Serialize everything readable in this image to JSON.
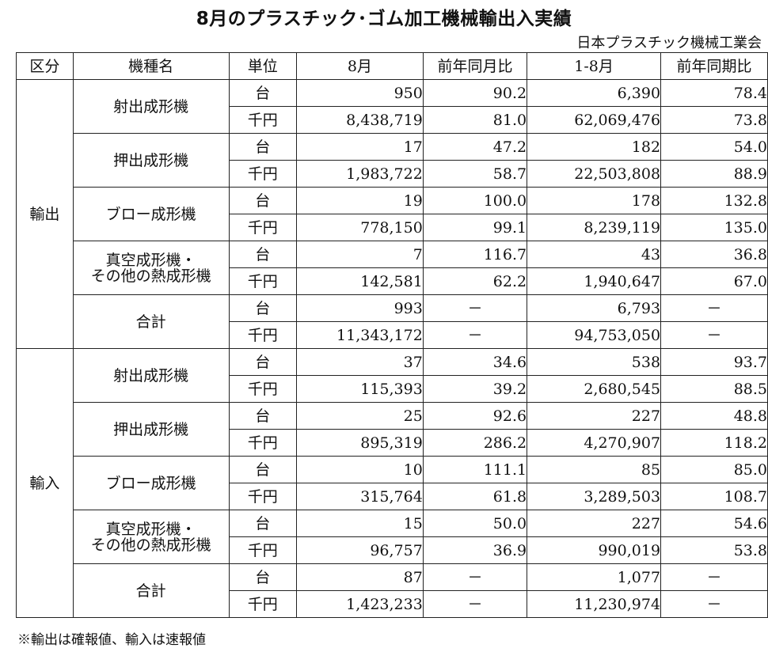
{
  "title": "8月のプラスチック･ゴム加工機械輸出入実績",
  "source": "日本プラスチック機械工業会",
  "headers": [
    "区分",
    "機種名",
    "単位",
    "8月",
    "前年同月比",
    "1-8月",
    "前年同期比"
  ],
  "groups": [
    {
      "name": "輸出",
      "machines": [
        {
          "name": "射出成形機",
          "rows": [
            {
              "unit": "台",
              "month": "950",
              "month_ratio": "90.2",
              "ytd": "6,390",
              "ytd_ratio": "78.4"
            },
            {
              "unit": "千円",
              "month": "8,438,719",
              "month_ratio": "81.0",
              "ytd": "62,069,476",
              "ytd_ratio": "73.8"
            }
          ]
        },
        {
          "name": "押出成形機",
          "rows": [
            {
              "unit": "台",
              "month": "17",
              "month_ratio": "47.2",
              "ytd": "182",
              "ytd_ratio": "54.0"
            },
            {
              "unit": "千円",
              "month": "1,983,722",
              "month_ratio": "58.7",
              "ytd": "22,503,808",
              "ytd_ratio": "88.9"
            }
          ]
        },
        {
          "name": "ブロー成形機",
          "rows": [
            {
              "unit": "台",
              "month": "19",
              "month_ratio": "100.0",
              "ytd": "178",
              "ytd_ratio": "132.8"
            },
            {
              "unit": "千円",
              "month": "778,150",
              "month_ratio": "99.1",
              "ytd": "8,239,119",
              "ytd_ratio": "135.0"
            }
          ]
        },
        {
          "name_line1": "真空成形機・",
          "name_line2": "その他の熱成形機",
          "rows": [
            {
              "unit": "台",
              "month": "7",
              "month_ratio": "116.7",
              "ytd": "43",
              "ytd_ratio": "36.8"
            },
            {
              "unit": "千円",
              "month": "142,581",
              "month_ratio": "62.2",
              "ytd": "1,940,647",
              "ytd_ratio": "67.0"
            }
          ]
        },
        {
          "name": "合計",
          "rows": [
            {
              "unit": "台",
              "month": "993",
              "month_ratio": "－",
              "ytd": "6,793",
              "ytd_ratio": "－"
            },
            {
              "unit": "千円",
              "month": "11,343,172",
              "month_ratio": "－",
              "ytd": "94,753,050",
              "ytd_ratio": "－"
            }
          ]
        }
      ]
    },
    {
      "name": "輸入",
      "machines": [
        {
          "name": "射出成形機",
          "rows": [
            {
              "unit": "台",
              "month": "37",
              "month_ratio": "34.6",
              "ytd": "538",
              "ytd_ratio": "93.7"
            },
            {
              "unit": "千円",
              "month": "115,393",
              "month_ratio": "39.2",
              "ytd": "2,680,545",
              "ytd_ratio": "88.5"
            }
          ]
        },
        {
          "name": "押出成形機",
          "rows": [
            {
              "unit": "台",
              "month": "25",
              "month_ratio": "92.6",
              "ytd": "227",
              "ytd_ratio": "48.8"
            },
            {
              "unit": "千円",
              "month": "895,319",
              "month_ratio": "286.2",
              "ytd": "4,270,907",
              "ytd_ratio": "118.2"
            }
          ]
        },
        {
          "name": "ブロー成形機",
          "rows": [
            {
              "unit": "台",
              "month": "10",
              "month_ratio": "111.1",
              "ytd": "85",
              "ytd_ratio": "85.0"
            },
            {
              "unit": "千円",
              "month": "315,764",
              "month_ratio": "61.8",
              "ytd": "3,289,503",
              "ytd_ratio": "108.7"
            }
          ]
        },
        {
          "name_line1": "真空成形機・",
          "name_line2": "その他の熱成形機",
          "rows": [
            {
              "unit": "台",
              "month": "15",
              "month_ratio": "50.0",
              "ytd": "227",
              "ytd_ratio": "54.6"
            },
            {
              "unit": "千円",
              "month": "96,757",
              "month_ratio": "36.9",
              "ytd": "990,019",
              "ytd_ratio": "53.8"
            }
          ]
        },
        {
          "name": "合計",
          "rows": [
            {
              "unit": "台",
              "month": "87",
              "month_ratio": "－",
              "ytd": "1,077",
              "ytd_ratio": "－"
            },
            {
              "unit": "千円",
              "month": "1,423,233",
              "month_ratio": "－",
              "ytd": "11,230,974",
              "ytd_ratio": "－"
            }
          ]
        }
      ]
    }
  ],
  "note": "※輸出は確報値、輸入は速報値"
}
